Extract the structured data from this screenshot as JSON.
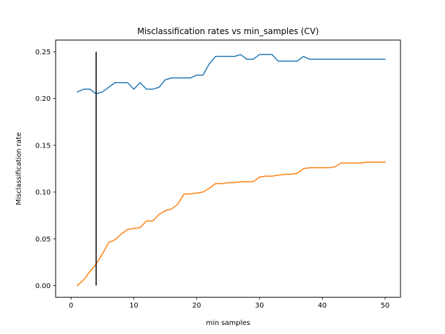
{
  "chart_data": {
    "type": "line",
    "title": "Misclassification rates vs min_samples (CV)",
    "xlabel": "min samples",
    "ylabel": "Misclassification rate",
    "xlim": [
      -2.45,
      52.45
    ],
    "ylim": [
      -0.0125,
      0.2625
    ],
    "xticks": [
      0,
      10,
      20,
      30,
      40,
      50
    ],
    "xtick_labels": [
      "0",
      "10",
      "20",
      "30",
      "40",
      "50"
    ],
    "yticks": [
      0.0,
      0.05,
      0.1,
      0.15,
      0.2,
      0.25
    ],
    "ytick_labels": [
      "0.00",
      "0.05",
      "0.10",
      "0.15",
      "0.20",
      "0.25"
    ],
    "grid": false,
    "colors": {
      "series_1": "#1f77b4",
      "series_2": "#ff7f0e",
      "marker_line": "#000000"
    },
    "x": [
      1,
      2,
      3,
      4,
      5,
      6,
      7,
      8,
      9,
      10,
      11,
      12,
      13,
      14,
      15,
      16,
      17,
      18,
      19,
      20,
      21,
      22,
      23,
      24,
      25,
      26,
      27,
      28,
      29,
      30,
      31,
      32,
      33,
      34,
      35,
      36,
      37,
      38,
      39,
      40,
      41,
      42,
      43,
      44,
      45,
      46,
      47,
      48,
      49,
      50
    ],
    "series": [
      {
        "color": "#1f77b4",
        "values": [
          0.207,
          0.21,
          0.21,
          0.205,
          0.207,
          0.212,
          0.217,
          0.217,
          0.217,
          0.21,
          0.217,
          0.21,
          0.21,
          0.212,
          0.22,
          0.222,
          0.222,
          0.222,
          0.222,
          0.225,
          0.225,
          0.237,
          0.245,
          0.245,
          0.245,
          0.245,
          0.247,
          0.242,
          0.242,
          0.247,
          0.247,
          0.247,
          0.24,
          0.24,
          0.24,
          0.24,
          0.245,
          0.242,
          0.242,
          0.242,
          0.242,
          0.242,
          0.242,
          0.242,
          0.242,
          0.242,
          0.242,
          0.242,
          0.242,
          0.242
        ]
      },
      {
        "color": "#ff7f0e",
        "values": [
          0.0,
          0.006,
          0.015,
          0.023,
          0.034,
          0.046,
          0.049,
          0.055,
          0.06,
          0.061,
          0.062,
          0.069,
          0.069,
          0.076,
          0.08,
          0.082,
          0.087,
          0.098,
          0.098,
          0.099,
          0.1,
          0.104,
          0.109,
          0.109,
          0.11,
          0.11,
          0.111,
          0.111,
          0.111,
          0.116,
          0.117,
          0.117,
          0.118,
          0.119,
          0.119,
          0.12,
          0.125,
          0.126,
          0.126,
          0.126,
          0.126,
          0.127,
          0.131,
          0.131,
          0.131,
          0.131,
          0.132,
          0.132,
          0.132,
          0.132
        ]
      }
    ],
    "vline": {
      "x": 4,
      "ymin": 0.0,
      "ymax": 0.25,
      "color": "#000000"
    }
  }
}
